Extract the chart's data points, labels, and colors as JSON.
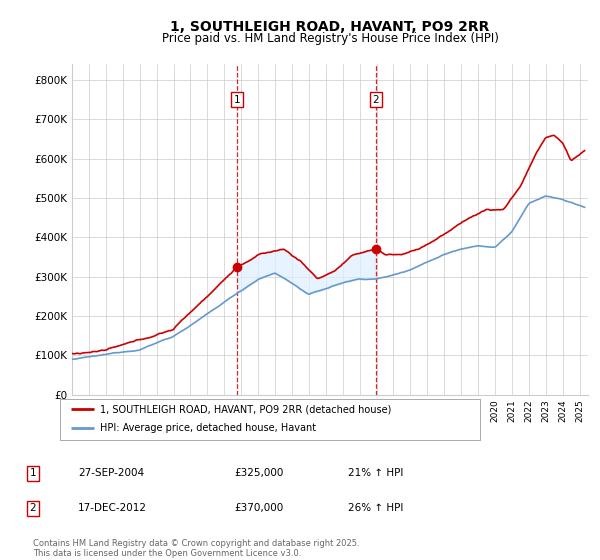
{
  "title": "1, SOUTHLEIGH ROAD, HAVANT, PO9 2RR",
  "subtitle": "Price paid vs. HM Land Registry's House Price Index (HPI)",
  "ylabel_ticks": [
    "£0",
    "£100K",
    "£200K",
    "£300K",
    "£400K",
    "£500K",
    "£600K",
    "£700K",
    "£800K"
  ],
  "ytick_values": [
    0,
    100000,
    200000,
    300000,
    400000,
    500000,
    600000,
    700000,
    800000
  ],
  "ylim": [
    0,
    840000
  ],
  "xlim_start": 1995.0,
  "xlim_end": 2025.5,
  "purchase1_x": 2004.74,
  "purchase1_y": 325000,
  "purchase2_x": 2012.96,
  "purchase2_y": 370000,
  "legend_entry1": "1, SOUTHLEIGH ROAD, HAVANT, PO9 2RR (detached house)",
  "legend_entry2": "HPI: Average price, detached house, Havant",
  "table_row1": [
    "1",
    "27-SEP-2004",
    "£325,000",
    "21% ↑ HPI"
  ],
  "table_row2": [
    "2",
    "17-DEC-2012",
    "£370,000",
    "26% ↑ HPI"
  ],
  "footnote": "Contains HM Land Registry data © Crown copyright and database right 2025.\nThis data is licensed under the Open Government Licence v3.0.",
  "red_color": "#cc0000",
  "blue_color": "#6699cc",
  "fill_color": "#ddeeff",
  "grid_color": "#cccccc",
  "bg_color": "#ffffff",
  "dashed_color": "#cc0000",
  "box_color": "#cc0000",
  "title_fontsize": 10,
  "subtitle_fontsize": 8.5
}
